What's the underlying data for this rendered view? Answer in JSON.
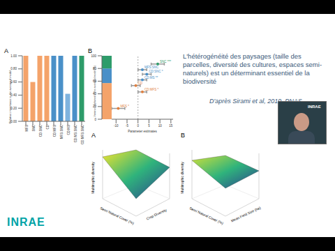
{
  "chart_data": [
    {
      "type": "bar",
      "title": "A",
      "y_label": "Relative importance in the averaged model",
      "categories": [
        "MFS",
        "SNC",
        "CD:SNC",
        "CD",
        "CD:MFS",
        "MFS:SNC",
        "CD:MS",
        "CD:MS:SNC",
        "CD:MFS:SNC"
      ],
      "values": [
        1.0,
        0.6,
        1.0,
        1.0,
        1.0,
        1.0,
        0.42,
        1.0,
        1.0
      ],
      "colors": [
        "#f4a36a",
        "#f4a36a",
        "#f4a36a",
        "#f4a36a",
        "#4a90c8",
        "#4a90c8",
        "#7fb3de",
        "#4a90c8",
        "#2e9c6a"
      ],
      "ylim": [
        0,
        1
      ],
      "yticks": [
        {
          "value": 0,
          "label": "0.00"
        },
        {
          "value": 0.2,
          "label": "0.20"
        },
        {
          "value": 0.4,
          "label": "0.40"
        },
        {
          "value": 0.6,
          "label": "0.60"
        },
        {
          "value": 0.8,
          "label": "0.80"
        },
        {
          "value": 1,
          "label": "1.00"
        }
      ]
    },
    {
      "type": "scatter",
      "title": "B",
      "x_label": "Parameter estimates",
      "y_label": "Variance explained in the averaged model (%)",
      "stack": {
        "values": [
          57,
          23,
          20
        ],
        "colors": [
          "#f4a36a",
          "#4a90c8",
          "#2e9c6a"
        ]
      },
      "points": [
        {
          "label": "SNC ***",
          "x": 9,
          "y": 87,
          "error": 3,
          "color": "#2e9c6a"
        },
        {
          "label": "MFS:SNC",
          "x": 2,
          "y": 78,
          "error": 2,
          "color": "#4a90c8"
        },
        {
          "label": "CD:SNC *",
          "x": 4,
          "y": 71,
          "error": 2,
          "color": "#4a90c8"
        },
        {
          "label": "CD:MS **",
          "x": 2,
          "y": 62,
          "error": 2,
          "color": "#4a90c8"
        },
        {
          "label": "CD",
          "x": -1,
          "y": 53,
          "error": 2,
          "color": "#e08040"
        },
        {
          "label": "CD:MFS *",
          "x": 2,
          "y": 43,
          "error": 2,
          "color": "#e08040"
        },
        {
          "label": "MFS *",
          "x": -9,
          "y": 17,
          "error": 3,
          "color": "#e08040"
        }
      ],
      "xlim": [
        -12,
        16
      ],
      "xticks": [
        -10,
        -5,
        0,
        5,
        10,
        15
      ],
      "ylim": [
        0,
        100
      ],
      "yticks": [
        0,
        20,
        40,
        60,
        80,
        100
      ]
    }
  ],
  "slide": {
    "text": "L'hétérogénéité des paysages (taille des parcelles, diversité des cultures, espaces semi-naturels) est un déterminant essentiel de la biodiversité",
    "citation": "D'après Sirami et al, 2019, PNAS",
    "logo": "INRAE",
    "surfaces": [
      {
        "title": "A",
        "z_label": "Multitrophic diversity",
        "x_label": "Semi Natural Cover (%)",
        "y_label": "Crop Diversity"
      },
      {
        "title": "B",
        "z_label": "Multitrophic diversity",
        "x_label": "Semi Natural Cover (%)",
        "y_label": "Mean Field Size (ha)"
      }
    ],
    "webcam": {
      "label": "INRAE"
    }
  }
}
